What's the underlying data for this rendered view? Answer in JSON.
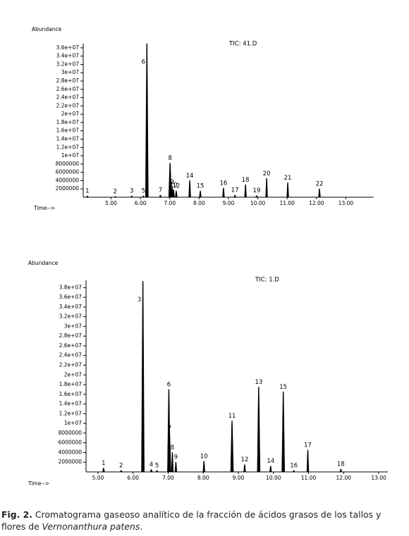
{
  "chart_data": [
    {
      "type": "chromatogram",
      "title": "TIC: 41.D",
      "y_label": "Abundance",
      "x_label": "Time-->",
      "color": "#000000",
      "xlim": [
        4.05,
        13.95
      ],
      "ylim": [
        0,
        37000000
      ],
      "xticks": [
        {
          "value": 5,
          "label": "5.00"
        },
        {
          "value": 6,
          "label": "6.00"
        },
        {
          "value": 7,
          "label": "7.00"
        },
        {
          "value": 8,
          "label": "8.00"
        },
        {
          "value": 9,
          "label": "9.00"
        },
        {
          "value": 10,
          "label": "10.00"
        },
        {
          "value": 11,
          "label": "11.00"
        },
        {
          "value": 12,
          "label": "12.00"
        },
        {
          "value": 13,
          "label": "13.00"
        }
      ],
      "yticks": [
        2000000,
        4000000,
        6000000,
        8000000,
        {
          "value": 10000000,
          "label": "1e+07"
        },
        {
          "value": 12000000,
          "label": "1.2e+07"
        },
        {
          "value": 14000000,
          "label": "1.4e+07"
        },
        {
          "value": 16000000,
          "label": "1.6e+07"
        },
        {
          "value": 18000000,
          "label": "1.8e+07"
        },
        {
          "value": 20000000,
          "label": "2e+07"
        },
        {
          "value": 22000000,
          "label": "2.2e+07"
        },
        {
          "value": 24000000,
          "label": "2.4e+07"
        },
        {
          "value": 26000000,
          "label": "2.6e+07"
        },
        {
          "value": 28000000,
          "label": "2.8e+07"
        },
        {
          "value": 30000000,
          "label": "3e+07"
        },
        {
          "value": 32000000,
          "label": "3.2e+07"
        },
        {
          "value": 34000000,
          "label": "3.4e+07"
        },
        {
          "value": 36000000,
          "label": "3.6e+07"
        }
      ],
      "peak_labels": [
        "1",
        "2",
        "3",
        "5",
        "6",
        "7",
        "8",
        "9",
        "10",
        "12",
        "14",
        "15",
        "16",
        "17",
        "18",
        "19",
        "20",
        "21",
        "22"
      ],
      "x": [
        4.19,
        5.14,
        5.7,
        6.1,
        6.22,
        6.68,
        7.01,
        7.08,
        7.13,
        7.22,
        7.68,
        8.04,
        8.83,
        9.22,
        9.58,
        9.96,
        10.3,
        11.02,
        12.1
      ],
      "values": [
        300000,
        200000,
        300000,
        300000,
        37000000,
        500000,
        8200000,
        2500000,
        1800000,
        1500000,
        4000000,
        1500000,
        2200000,
        500000,
        3000000,
        400000,
        4500000,
        3500000,
        2000000
      ]
    },
    {
      "type": "chromatogram",
      "title": "TIC: 1.D",
      "y_label": "Abundance",
      "x_label": "Time-->",
      "color": "#000000",
      "xlim": [
        4.66,
        13.26
      ],
      "ylim": [
        0,
        39500000
      ],
      "xticks": [
        {
          "value": 5,
          "label": "5.00"
        },
        {
          "value": 6,
          "label": "6.00"
        },
        {
          "value": 7,
          "label": "7.00"
        },
        {
          "value": 8,
          "label": "8.00"
        },
        {
          "value": 9,
          "label": "9.00"
        },
        {
          "value": 10,
          "label": "10.00"
        },
        {
          "value": 11,
          "label": "11.00"
        },
        {
          "value": 12,
          "label": "12.00"
        },
        {
          "value": 13,
          "label": "13.00"
        }
      ],
      "yticks": [
        2000000,
        4000000,
        6000000,
        8000000,
        {
          "value": 10000000,
          "label": "1e+07"
        },
        {
          "value": 12000000,
          "label": "1.2e+07"
        },
        {
          "value": 14000000,
          "label": "1.4e+07"
        },
        {
          "value": 16000000,
          "label": "1.6e+07"
        },
        {
          "value": 18000000,
          "label": "1.8e+07"
        },
        {
          "value": 20000000,
          "label": "2e+07"
        },
        {
          "value": 22000000,
          "label": "2.2e+07"
        },
        {
          "value": 24000000,
          "label": "2.4e+07"
        },
        {
          "value": 26000000,
          "label": "2.6e+07"
        },
        {
          "value": 28000000,
          "label": "2.8e+07"
        },
        {
          "value": 30000000,
          "label": "3e+07"
        },
        {
          "value": 32000000,
          "label": "3.2e+07"
        },
        {
          "value": 34000000,
          "label": "3.4e+07"
        },
        {
          "value": 36000000,
          "label": "3.6e+07"
        },
        {
          "value": 38000000,
          "label": "3.8e+07"
        }
      ],
      "peak_labels": [
        "1",
        "2",
        "3",
        "4",
        "5",
        "6",
        "7",
        "8",
        "9",
        "10",
        "11",
        "12",
        "13",
        "14",
        "15",
        "16",
        "17",
        "18"
      ],
      "x": [
        5.16,
        5.66,
        6.28,
        6.52,
        6.68,
        7.02,
        7.04,
        7.12,
        7.22,
        8.02,
        8.82,
        9.18,
        9.58,
        9.92,
        10.28,
        10.58,
        10.98,
        11.92
      ],
      "values": [
        800000,
        300000,
        39300000,
        500000,
        300000,
        17000000,
        8000000,
        4000000,
        2000000,
        2200000,
        10500000,
        1500000,
        17500000,
        1200000,
        16500000,
        300000,
        4500000,
        600000
      ]
    }
  ],
  "caption": {
    "label": "Fig. 2.",
    "text": "Cromatograma gaseoso analítico de la fracción de ácidos grasos de los tallos y flores de",
    "species": "Vernonanthura patens",
    "end": "."
  }
}
